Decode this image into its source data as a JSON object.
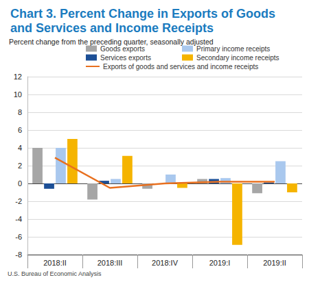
{
  "chart_data": {
    "type": "bar",
    "title": "Chart 3. Percent Change in Exports of Goods and Services and Income Receipts",
    "subtitle": "Percent change from the preceding quarter, seasonally adjusted",
    "source": "U.S. Bureau of Economic Analysis",
    "categories": [
      "2018:II",
      "2018:III",
      "2018:IV",
      "2019:I",
      "2019:II"
    ],
    "series": [
      {
        "name": "Goods exports",
        "type": "bar",
        "color": "#a6a6a6",
        "values": [
          4.0,
          -1.8,
          -0.6,
          0.5,
          -1.1
        ]
      },
      {
        "name": "Services exports",
        "type": "bar",
        "color": "#1c4f96",
        "values": [
          -0.6,
          0.3,
          0.0,
          0.5,
          0.1
        ]
      },
      {
        "name": "Primary income receipts",
        "type": "bar",
        "color": "#a9c8ee",
        "values": [
          4.0,
          0.5,
          1.0,
          0.6,
          2.5
        ]
      },
      {
        "name": "Secondary income receipts",
        "type": "bar",
        "color": "#f5b400",
        "values": [
          5.0,
          3.1,
          -0.5,
          -6.9,
          -1.0
        ]
      },
      {
        "name": "Exports of goods and services and income receipts",
        "type": "line",
        "color": "#e8701f",
        "values": [
          2.9,
          -0.5,
          0.0,
          0.2,
          0.2
        ]
      }
    ],
    "ylim": [
      -8,
      12
    ],
    "yticks": [
      -8,
      -6,
      -4,
      -2,
      0,
      2,
      4,
      6,
      8,
      10,
      12
    ],
    "grid": true,
    "legend": "top"
  }
}
